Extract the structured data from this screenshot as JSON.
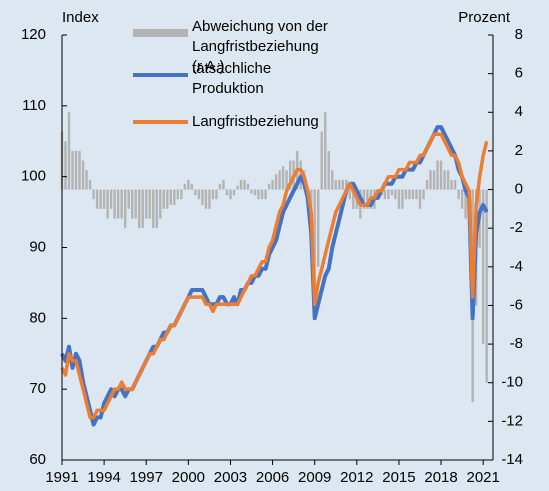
{
  "chart_data": {
    "type": "line",
    "y_label": "Index",
    "y2_label": "Prozent",
    "x": [
      1991,
      1991.25,
      1991.5,
      1991.75,
      1992,
      1992.25,
      1992.5,
      1992.75,
      1993,
      1993.25,
      1993.5,
      1993.75,
      1994,
      1994.25,
      1994.5,
      1994.75,
      1995,
      1995.25,
      1995.5,
      1995.75,
      1996,
      1996.25,
      1996.5,
      1996.75,
      1997,
      1997.25,
      1997.5,
      1997.75,
      1998,
      1998.25,
      1998.5,
      1998.75,
      1999,
      1999.25,
      1999.5,
      1999.75,
      2000,
      2000.25,
      2000.5,
      2000.75,
      2001,
      2001.25,
      2001.5,
      2001.75,
      2002,
      2002.25,
      2002.5,
      2002.75,
      2003,
      2003.25,
      2003.5,
      2003.75,
      2004,
      2004.25,
      2004.5,
      2004.75,
      2005,
      2005.25,
      2005.5,
      2005.75,
      2006,
      2006.25,
      2006.5,
      2006.75,
      2007,
      2007.25,
      2007.5,
      2007.75,
      2008,
      2008.25,
      2008.5,
      2008.75,
      2009,
      2009.25,
      2009.5,
      2009.75,
      2010,
      2010.25,
      2010.5,
      2010.75,
      2011,
      2011.25,
      2011.5,
      2011.75,
      2012,
      2012.25,
      2012.5,
      2012.75,
      2013,
      2013.25,
      2013.5,
      2013.75,
      2014,
      2014.25,
      2014.5,
      2014.75,
      2015,
      2015.25,
      2015.5,
      2015.75,
      2016,
      2016.25,
      2016.5,
      2016.75,
      2017,
      2017.25,
      2017.5,
      2017.75,
      2018,
      2018.25,
      2018.5,
      2018.75,
      2019,
      2019.25,
      2019.5,
      2019.75,
      2020,
      2020.25,
      2020.5,
      2020.75,
      2021,
      2021.25
    ],
    "series": [
      {
        "name": "tatsächliche Produktion",
        "color": "#4472c4",
        "values": [
          75,
          74,
          76,
          73,
          75,
          74,
          71,
          69,
          67,
          65,
          66,
          66,
          68,
          69,
          70,
          69,
          70,
          70,
          69,
          70,
          70,
          71,
          72,
          73,
          74,
          75,
          76,
          76,
          77,
          78,
          78,
          79,
          79,
          80,
          81,
          82,
          83,
          84,
          84,
          84,
          84,
          83,
          82,
          82,
          82,
          83,
          83,
          82,
          82,
          83,
          82,
          84,
          84,
          85,
          85,
          86,
          86,
          87,
          87,
          89,
          90,
          91,
          93,
          95,
          96,
          97,
          98,
          99,
          100,
          99,
          97,
          92,
          80,
          82,
          84,
          86,
          87,
          90,
          92,
          94,
          96,
          98,
          99,
          99,
          98,
          97,
          96,
          96,
          96,
          97,
          97,
          98,
          99,
          99,
          99,
          100,
          100,
          100,
          101,
          101,
          101,
          102,
          102,
          103,
          104,
          105,
          106,
          107,
          107,
          106,
          105,
          104,
          103,
          101,
          100,
          98,
          97,
          80,
          92,
          95,
          96,
          95
        ]
      },
      {
        "name": "Langfristbeziehung",
        "color": "#ed7d31",
        "values": [
          73,
          72,
          75,
          74,
          74,
          72,
          70,
          68,
          66,
          66,
          67,
          67,
          67,
          68,
          69,
          70,
          70,
          71,
          70,
          70,
          70,
          71,
          72,
          73,
          74,
          75,
          75,
          76,
          77,
          77,
          78,
          79,
          79,
          80,
          81,
          82,
          83,
          83,
          83,
          83,
          83,
          82,
          82,
          81,
          82,
          82,
          82,
          82,
          82,
          82,
          82,
          83,
          84,
          85,
          86,
          86,
          87,
          88,
          88,
          90,
          91,
          93,
          95,
          96,
          98,
          99,
          100,
          101,
          101,
          100,
          98,
          95,
          82,
          85,
          87,
          89,
          91,
          93,
          95,
          96,
          97,
          98,
          99,
          98,
          97,
          96,
          96,
          96,
          97,
          97,
          98,
          98,
          99,
          100,
          100,
          100,
          101,
          101,
          101,
          102,
          102,
          102,
          103,
          103,
          104,
          105,
          106,
          106,
          106,
          105,
          104,
          103,
          103,
          102,
          100,
          99,
          98,
          83,
          96,
          100,
          103,
          105
        ]
      },
      {
        "name": "Abweichung von der Langfristbeziehung (r.A.)",
        "color": "#b3b3b3",
        "type": "bar",
        "axis": "y2",
        "values": [
          3,
          2.5,
          4,
          2,
          2,
          2,
          1.5,
          1,
          0.5,
          -0.5,
          -1,
          -1,
          -1,
          -1.5,
          -1,
          -1.5,
          -1.5,
          -1.5,
          -2,
          -1,
          -1.5,
          -1.5,
          -2,
          -2,
          -1.5,
          -1.5,
          -2,
          -2,
          -1.5,
          -1,
          -1,
          -0.8,
          -0.8,
          -0.5,
          -0.5,
          0.3,
          0.5,
          0.3,
          -0.3,
          -0.5,
          -0.8,
          -1,
          -1,
          -0.5,
          -0.5,
          0.3,
          0.5,
          -0.3,
          -0.5,
          -0.3,
          0.2,
          0.5,
          0.5,
          0.3,
          -0.2,
          -0.3,
          -0.5,
          -0.5,
          -0.5,
          0.3,
          0.5,
          0.8,
          1,
          1.2,
          1,
          1.5,
          1.5,
          2,
          1.5,
          1,
          -1,
          -3,
          -5,
          -4,
          3,
          4,
          2,
          1,
          0.5,
          0.5,
          0.5,
          0.5,
          -0.5,
          -1,
          -1,
          -1.5,
          -1,
          -1,
          -1,
          -1,
          -0.5,
          -0.3,
          -0.5,
          -0.5,
          -0.3,
          -0.5,
          -1,
          -1,
          -0.5,
          -0.5,
          -0.5,
          -0.5,
          -1,
          -0.5,
          0.5,
          1,
          1,
          1.5,
          1.5,
          1,
          1,
          0.5,
          0.5,
          -0.5,
          -1,
          -1.5,
          -2,
          -11,
          -6,
          -3,
          -8,
          -10
        ]
      }
    ],
    "xlim": [
      1991,
      2021.7
    ],
    "xticks": [
      1991,
      1994,
      1997,
      2000,
      2003,
      2006,
      2009,
      2012,
      2015,
      2018,
      2021
    ],
    "ylim": [
      60,
      120
    ],
    "yticks": [
      60,
      70,
      80,
      90,
      100,
      110,
      120
    ],
    "y2lim": [
      -14,
      8
    ],
    "y2ticks": [
      -14,
      -12,
      -10,
      -8,
      -6,
      -4,
      -2,
      0,
      2,
      4,
      6,
      8
    ]
  }
}
